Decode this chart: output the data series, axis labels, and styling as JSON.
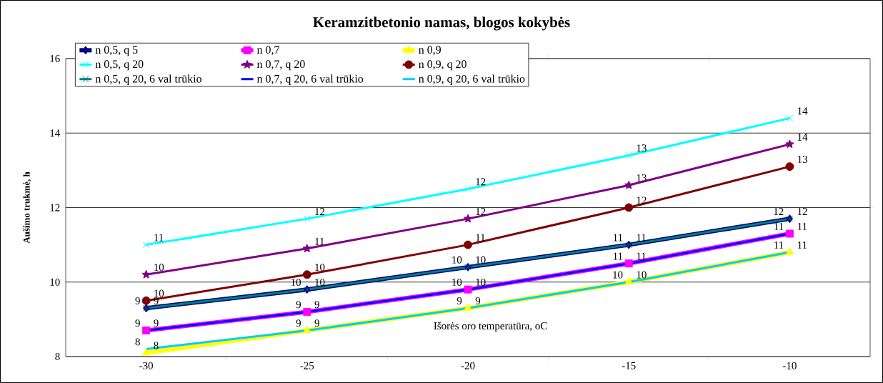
{
  "chart_data": {
    "type": "line",
    "title": "Keramzitbetonio namas, blogos kokybės",
    "xlabel": "Išorės oro temperatūra, oC",
    "ylabel": "Aušimo trukmė, h",
    "categories": [
      "-30",
      "-25",
      "-20",
      "-15",
      "-10"
    ],
    "series": [
      {
        "name": "n 0,5, q 5",
        "color": "#000080",
        "marker": "diamond",
        "values": [
          9.3,
          9.8,
          10.4,
          11.0,
          11.7
        ],
        "value_labels": [
          "9",
          "10",
          "10",
          "11",
          "12"
        ]
      },
      {
        "name": "n 0,7",
        "color": "#ff00ff",
        "marker": "square",
        "values": [
          8.7,
          9.2,
          9.8,
          10.5,
          11.3
        ],
        "value_labels": [
          "9",
          "9",
          "10",
          "11",
          "11"
        ]
      },
      {
        "name": "n 0,9",
        "color": "#ffff00",
        "marker": "triangle",
        "values": [
          8.1,
          8.7,
          9.3,
          10.0,
          10.8
        ],
        "value_labels": [
          "8",
          "9",
          "9",
          "10",
          "11"
        ]
      },
      {
        "name": "n 0,5, q 20",
        "color": "#00ffff",
        "marker": "cross",
        "values": [
          11.0,
          11.7,
          12.5,
          13.4,
          14.4
        ],
        "value_labels": [
          "11",
          "12",
          "12",
          "13",
          "14"
        ]
      },
      {
        "name": "n 0,7, q 20",
        "color": "#800080",
        "marker": "star",
        "values": [
          10.2,
          10.9,
          11.7,
          12.6,
          13.7
        ],
        "value_labels": [
          "10",
          "11",
          "12",
          "13",
          "14"
        ]
      },
      {
        "name": "n 0,9, q 20",
        "color": "#800000",
        "marker": "circle",
        "values": [
          9.5,
          10.2,
          11.0,
          12.0,
          13.1
        ],
        "value_labels": [
          "10",
          "10",
          "11",
          "12",
          "13"
        ]
      },
      {
        "name": "n 0,5, q 20, 6 val trūkio",
        "color": "#008080",
        "marker": "cross",
        "values": [
          9.3,
          9.8,
          10.4,
          11.0,
          11.7
        ],
        "value_labels": [
          "9",
          "10",
          "10",
          "11",
          "12"
        ]
      },
      {
        "name": "n 0,7, q 20,  6 val trūkio",
        "color": "#0000ff",
        "marker": "none",
        "values": [
          8.7,
          9.2,
          9.8,
          10.5,
          11.3
        ],
        "value_labels": [
          "9",
          "9",
          "10",
          "11",
          "11"
        ]
      },
      {
        "name": "n 0,9, q 20,  6 val trūkio",
        "color": "#00ccff",
        "marker": "none",
        "values": [
          8.2,
          8.7,
          9.3,
          10.0,
          10.8
        ],
        "value_labels": [
          "8",
          "9",
          "9",
          "10",
          "11"
        ]
      }
    ],
    "ylim": [
      8,
      16
    ],
    "yticks": [
      8,
      10,
      12,
      14,
      16
    ],
    "grid": "y",
    "legend": "top"
  }
}
